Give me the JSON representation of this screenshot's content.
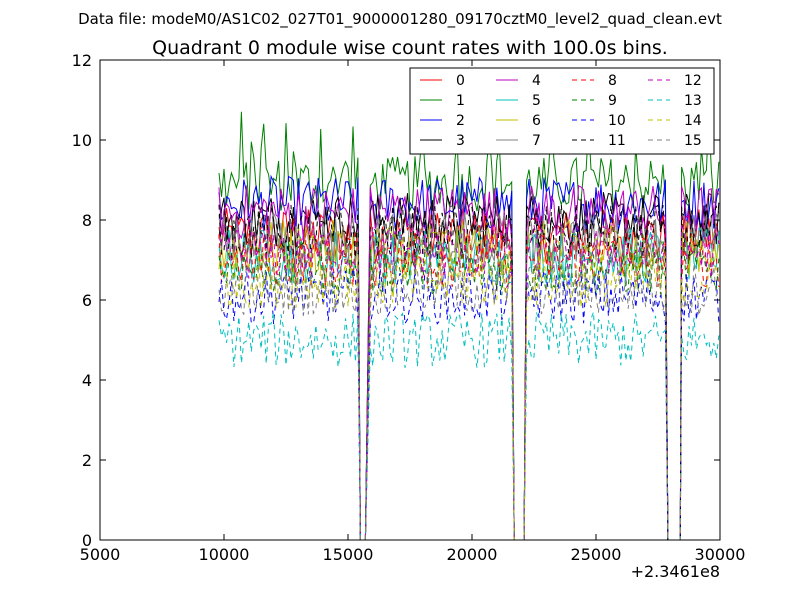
{
  "chart_data": {
    "type": "line",
    "suptitle": "Data file: modeM0/AS1C02_027T01_9000001280_09170cztM0_level2_quad_clean.evt",
    "title": "Quadrant 0 module wise count rates with 100.0s bins.",
    "xlabel": "",
    "ylabel": "",
    "xlim": [
      5000,
      30000
    ],
    "ylim": [
      0,
      12
    ],
    "x_offset_label": "+2.3461e8",
    "xticks": [
      5000,
      10000,
      15000,
      20000,
      25000,
      30000
    ],
    "yticks": [
      0,
      2,
      4,
      6,
      8,
      10,
      12
    ],
    "xtick_labels": [
      "5000",
      "10000",
      "15000",
      "20000",
      "25000",
      "30000"
    ],
    "ytick_labels": [
      "0",
      "2",
      "4",
      "6",
      "8",
      "10",
      "12"
    ],
    "grid": false,
    "legend_position": "top-right",
    "bin_seconds": 100,
    "segments": [
      [
        9800,
        15400
      ],
      [
        15900,
        21600
      ],
      [
        22200,
        27800
      ],
      [
        28450,
        29950
      ]
    ],
    "drop_points": [
      [
        15500,
        0
      ],
      [
        15700,
        0
      ],
      [
        21700,
        0
      ],
      [
        22100,
        0
      ],
      [
        27900,
        0
      ],
      [
        28400,
        0
      ]
    ],
    "series": [
      {
        "name": "0",
        "color": "#ff0000",
        "dash": "solid",
        "mean": 7.6
      },
      {
        "name": "1",
        "color": "#008000",
        "dash": "solid",
        "mean": 8.9
      },
      {
        "name": "2",
        "color": "#0000ff",
        "dash": "solid",
        "mean": 8.4
      },
      {
        "name": "3",
        "color": "#000000",
        "dash": "solid",
        "mean": 8.0
      },
      {
        "name": "4",
        "color": "#bf00bf",
        "dash": "solid",
        "mean": 8.2
      },
      {
        "name": "5",
        "color": "#00bfbf",
        "dash": "solid",
        "mean": 7.1
      },
      {
        "name": "6",
        "color": "#bfbf00",
        "dash": "solid",
        "mean": 7.3
      },
      {
        "name": "7",
        "color": "#808080",
        "dash": "solid",
        "mean": 7.5
      },
      {
        "name": "8",
        "color": "#ff0000",
        "dash": "dashed",
        "mean": 7.0
      },
      {
        "name": "9",
        "color": "#008000",
        "dash": "dashed",
        "mean": 6.8
      },
      {
        "name": "10",
        "color": "#0000ff",
        "dash": "dashed",
        "mean": 6.1
      },
      {
        "name": "11",
        "color": "#000000",
        "dash": "dashed",
        "mean": 7.7
      },
      {
        "name": "12",
        "color": "#bf00bf",
        "dash": "dashed",
        "mean": 7.2
      },
      {
        "name": "13",
        "color": "#00bfbf",
        "dash": "dashed",
        "mean": 5.0
      },
      {
        "name": "14",
        "color": "#bfbf00",
        "dash": "dashed",
        "mean": 6.5
      },
      {
        "name": "15",
        "color": "#808080",
        "dash": "dashed",
        "mean": 6.3
      }
    ]
  }
}
